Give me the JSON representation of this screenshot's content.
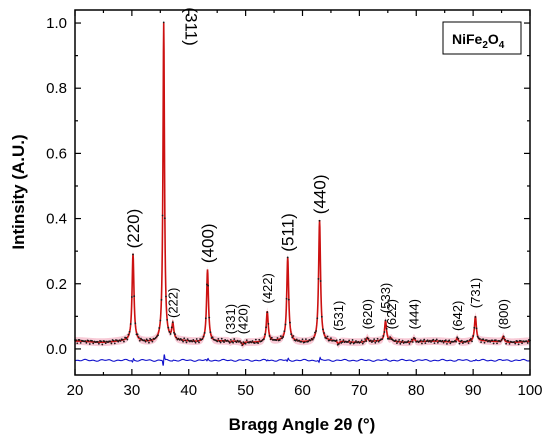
{
  "chart_data": {
    "type": "line",
    "xlabel": "Bragg Angle 2θ (°)",
    "ylabel": "Intinsity (A.U.)",
    "xlim": [
      20,
      100
    ],
    "ylim": [
      -0.08,
      1.04
    ],
    "x_ticks": [
      20,
      30,
      40,
      50,
      60,
      70,
      80,
      90,
      100
    ],
    "y_ticks": [
      0.0,
      0.2,
      0.4,
      0.6,
      0.8,
      1.0
    ],
    "y_tick_labels": [
      "0.0",
      "0.2",
      "0.4",
      "0.6",
      "0.8",
      "1.0"
    ],
    "grid": false,
    "legend_box": {
      "main": "NiFe",
      "sub": "2",
      "main2": "O",
      "sub2": "4",
      "placement": "top-right"
    },
    "baseline_observed": 0.022,
    "baseline_difference": -0.035,
    "peaks": [
      {
        "two_theta": 30.2,
        "intensity": 0.29,
        "hkl": "(220)"
      },
      {
        "two_theta": 35.6,
        "intensity": 1.0,
        "hkl": "(311)"
      },
      {
        "two_theta": 37.2,
        "intensity": 0.07,
        "hkl": "(222)"
      },
      {
        "two_theta": 43.3,
        "intensity": 0.245,
        "hkl": "(400)"
      },
      {
        "two_theta": 47.3,
        "intensity": 0.018,
        "hkl": "(331)"
      },
      {
        "two_theta": 49.5,
        "intensity": 0.012,
        "hkl": "(420)"
      },
      {
        "two_theta": 53.8,
        "intensity": 0.115,
        "hkl": "(422)"
      },
      {
        "two_theta": 57.4,
        "intensity": 0.28,
        "hkl": "(511)"
      },
      {
        "two_theta": 63.0,
        "intensity": 0.395,
        "hkl": "(440)"
      },
      {
        "two_theta": 66.3,
        "intensity": 0.012,
        "hkl": "(531)"
      },
      {
        "two_theta": 71.4,
        "intensity": 0.035,
        "hkl": "(620)"
      },
      {
        "two_theta": 74.6,
        "intensity": 0.085,
        "hkl": "(533)"
      },
      {
        "two_theta": 75.6,
        "intensity": 0.03,
        "hkl": "(622)"
      },
      {
        "two_theta": 79.6,
        "intensity": 0.035,
        "hkl": "(444)"
      },
      {
        "two_theta": 87.2,
        "intensity": 0.035,
        "hkl": "(642)"
      },
      {
        "two_theta": 90.4,
        "intensity": 0.1,
        "hkl": "(731)"
      },
      {
        "two_theta": 95.3,
        "intensity": 0.04,
        "hkl": "(800)"
      }
    ],
    "series": [
      {
        "role": "observed (dots)",
        "color": "#1a1a1a"
      },
      {
        "role": "calculated fit",
        "color": "#cc1111"
      },
      {
        "role": "fit band",
        "color": "#f5b8c8"
      },
      {
        "role": "difference",
        "color": "#1111cc"
      }
    ]
  }
}
